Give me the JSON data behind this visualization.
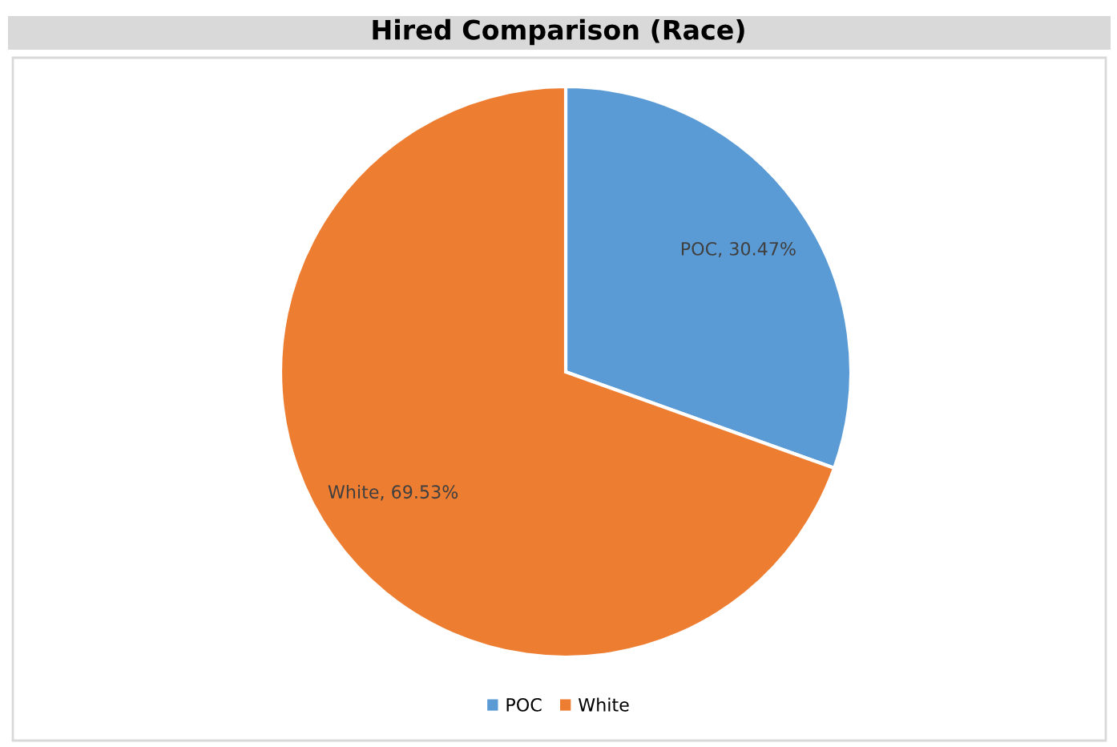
{
  "chart_data": {
    "type": "pie",
    "title": "Hired Comparison (Race)",
    "categories": [
      "POC",
      "White"
    ],
    "values": [
      30.47,
      69.53
    ],
    "colors": [
      "#5b9bd5",
      "#ed7d31"
    ],
    "value_labels": [
      "POC, 30.47%",
      "White, 69.53%"
    ],
    "legend": "bottom"
  }
}
